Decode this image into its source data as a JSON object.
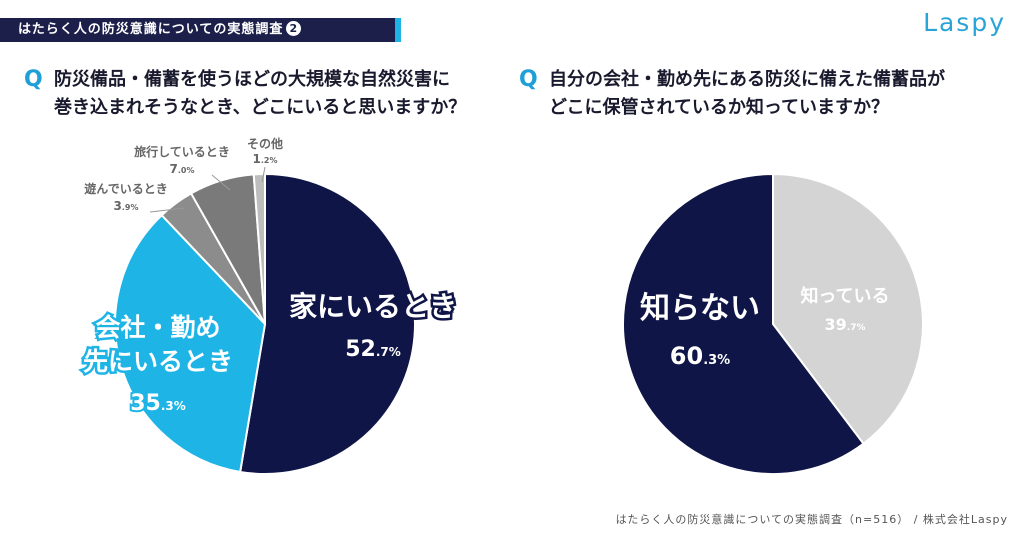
{
  "header": {
    "title": "はたらく人の防災意識についての実態調査",
    "badge": "2",
    "logo": "Laspy"
  },
  "questions": [
    {
      "mark": "Q",
      "line1": "防災備品・備蓄を使うほどの大規模な自然災害に",
      "line2": "巻き込まれそうなとき、どこにいると思いますか？"
    },
    {
      "mark": "Q",
      "line1": "自分の会社・勤め先にある防災に備えた備蓄品が",
      "line2": "どこに保管されているか知っていますか？"
    }
  ],
  "colors": {
    "navy": "#0f1546",
    "cyan": "#1eb4e6",
    "gray_mid": "#8c8c8c",
    "gray_dark": "#7a7a7a",
    "gray_light": "#bdbdbd",
    "gray_pale": "#d4d4d4"
  },
  "chart_data": [
    {
      "type": "pie",
      "title": "",
      "slices": [
        {
          "label": "家にいるとき",
          "int": "52",
          "dec": ".7%",
          "value": 52.7,
          "color": "#0f1546"
        },
        {
          "label": "会社・勤め先にいるとき",
          "int": "35",
          "dec": ".3%",
          "value": 35.3,
          "color": "#1eb4e6"
        },
        {
          "label": "遊んでいるとき",
          "int": "3",
          "dec": ".9%",
          "value": 3.9,
          "color": "#8c8c8c"
        },
        {
          "label": "旅行しているとき",
          "int": "7",
          "dec": ".0%",
          "value": 7.0,
          "color": "#7a7a7a"
        },
        {
          "label": "その他",
          "int": "1",
          "dec": ".2%",
          "value": 1.2,
          "color": "#bdbdbd"
        }
      ]
    },
    {
      "type": "pie",
      "title": "",
      "slices": [
        {
          "label": "知っている",
          "int": "39",
          "dec": ".7%",
          "value": 39.7,
          "color": "#d4d4d4"
        },
        {
          "label": "知らない",
          "int": "60",
          "dec": ".3%",
          "value": 60.3,
          "color": "#0f1546"
        }
      ]
    }
  ],
  "footer": "はたらく人の防災意識についての実態調査（n=516） / 株式会社Laspy"
}
